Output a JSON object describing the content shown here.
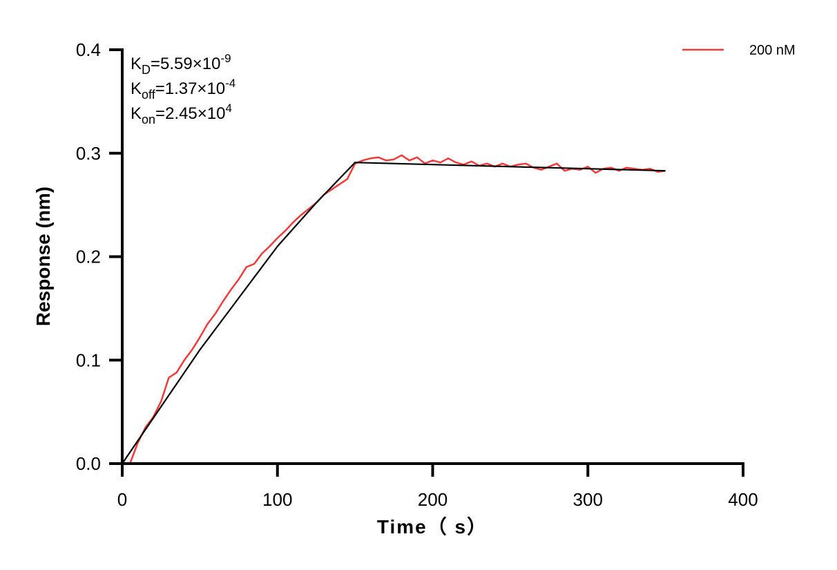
{
  "chart_data": {
    "type": "line",
    "title": "",
    "xlabel": "Time（ s）",
    "ylabel": "Response (nm)",
    "xlim": [
      0,
      400
    ],
    "ylim": [
      0,
      0.4
    ],
    "xticks": [
      "0",
      "100",
      "200",
      "300",
      "400"
    ],
    "yticks": [
      "0.0",
      "0.1",
      "0.2",
      "0.3",
      "0.4"
    ],
    "grid": false,
    "legend_position": "top-right",
    "annotations": [
      {
        "main": "K",
        "sub": "D",
        "rest": "=5.59×10",
        "sup": "-9"
      },
      {
        "main": "K",
        "sub": "off",
        "rest": "=1.37×10",
        "sup": "-4"
      },
      {
        "main": "K",
        "sub": "on",
        "rest": "=2.45×10",
        "sup": "4"
      }
    ],
    "series": [
      {
        "name": "200 nM",
        "color": "#ef3b3b",
        "x": [
          5,
          10,
          15,
          20,
          25,
          30,
          35,
          40,
          45,
          50,
          55,
          60,
          65,
          70,
          75,
          80,
          85,
          90,
          95,
          100,
          105,
          110,
          115,
          120,
          125,
          130,
          135,
          140,
          145,
          150,
          155,
          160,
          165,
          170,
          175,
          180,
          185,
          190,
          195,
          200,
          205,
          210,
          215,
          220,
          225,
          230,
          235,
          240,
          245,
          250,
          255,
          260,
          265,
          270,
          275,
          280,
          285,
          290,
          295,
          300,
          305,
          310,
          315,
          320,
          325,
          330,
          335,
          340,
          345,
          350
        ],
        "y": [
          0.0,
          0.02,
          0.035,
          0.045,
          0.06,
          0.083,
          0.088,
          0.1,
          0.11,
          0.122,
          0.135,
          0.145,
          0.157,
          0.168,
          0.178,
          0.19,
          0.193,
          0.203,
          0.21,
          0.218,
          0.225,
          0.233,
          0.24,
          0.246,
          0.252,
          0.26,
          0.265,
          0.27,
          0.275,
          0.29,
          0.293,
          0.295,
          0.296,
          0.293,
          0.294,
          0.298,
          0.293,
          0.296,
          0.29,
          0.293,
          0.291,
          0.295,
          0.291,
          0.289,
          0.292,
          0.288,
          0.29,
          0.287,
          0.29,
          0.287,
          0.289,
          0.29,
          0.286,
          0.284,
          0.287,
          0.29,
          0.283,
          0.285,
          0.284,
          0.287,
          0.281,
          0.285,
          0.286,
          0.283,
          0.286,
          0.285,
          0.284,
          0.285,
          0.282,
          0.283
        ]
      },
      {
        "color": "#000000",
        "x": [
          0,
          25,
          50,
          75,
          100,
          125,
          150,
          200,
          250,
          300,
          350
        ],
        "y": [
          0.0,
          0.055,
          0.11,
          0.16,
          0.21,
          0.252,
          0.291,
          0.289,
          0.287,
          0.285,
          0.283
        ]
      }
    ]
  }
}
